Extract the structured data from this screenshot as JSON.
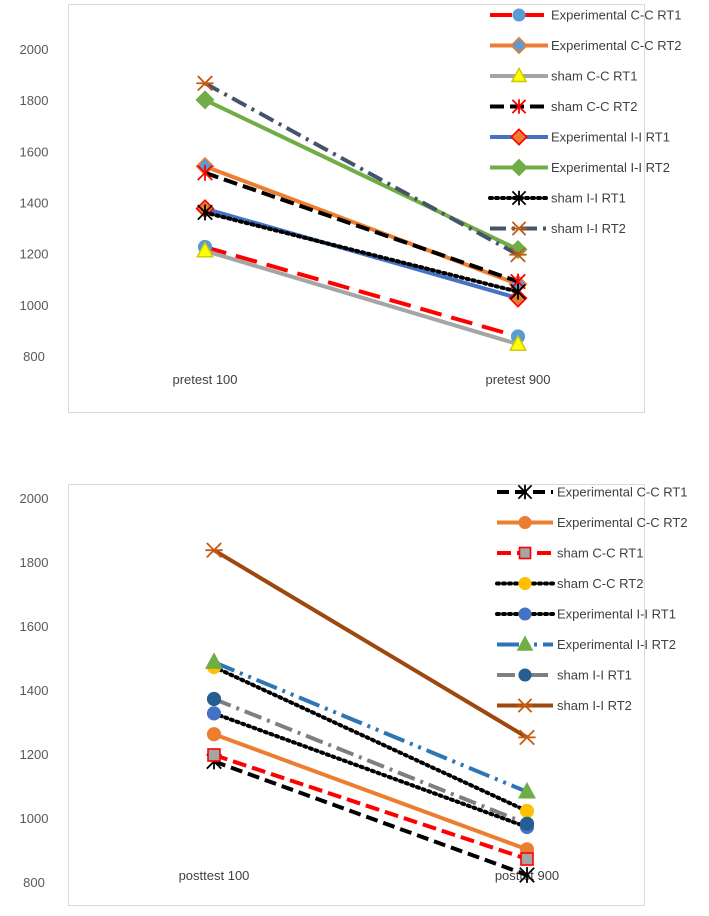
{
  "charts": [
    {
      "type": "line",
      "categories": [
        "pretest 100",
        "pretest 900"
      ],
      "ylim": [
        800,
        2000
      ],
      "yticks": [
        800,
        1000,
        1200,
        1400,
        1600,
        1800,
        2000
      ],
      "grid": false,
      "legend": "right",
      "series": [
        {
          "name": "Experimental C-C RT1",
          "values": [
            1230,
            880
          ],
          "color": "#ff0000",
          "dash": "22,10",
          "marker": "circle",
          "markerFill": "#5b9bd5",
          "markerStroke": "#5b9bd5"
        },
        {
          "name": "Experimental C-C RT2",
          "values": [
            1545,
            1085
          ],
          "color": "#ed7d31",
          "dash": "",
          "marker": "diamond",
          "markerFill": "#5b9bd5",
          "markerStroke": "#ed7d31"
        },
        {
          "name": "sham C-C RT1",
          "values": [
            1215,
            850
          ],
          "color": "#a5a5a5",
          "dash": "",
          "marker": "triangle",
          "markerFill": "#ffff00",
          "markerStroke": "#c9c900"
        },
        {
          "name": "sham C-C RT2",
          "values": [
            1520,
            1095
          ],
          "color": "#000000",
          "dash": "14,6",
          "marker": "star",
          "markerFill": "#ff0000",
          "markerStroke": "#ff0000"
        },
        {
          "name": "Experimental I-I RT1",
          "values": [
            1380,
            1030
          ],
          "color": "#4472c4",
          "dash": "",
          "marker": "diamond",
          "markerFill": "#ed7d31",
          "markerStroke": "#ff0000"
        },
        {
          "name": "Experimental  I-I RT2",
          "values": [
            1805,
            1220
          ],
          "color": "#70ad47",
          "dash": "",
          "marker": "diamond",
          "markerFill": "#70ad47",
          "markerStroke": "#70ad47"
        },
        {
          "name": "sham   I-I RT1",
          "values": [
            1365,
            1055
          ],
          "color": "#000000",
          "dash": "2,4",
          "marker": "star",
          "markerFill": "#000000",
          "markerStroke": "#000000"
        },
        {
          "name": "sham   I-I RT2",
          "values": [
            1870,
            1200
          ],
          "color": "#44546a",
          "dash": "16,6,3,6",
          "marker": "xstar",
          "markerFill": "#c55a11",
          "markerStroke": "#c55a11"
        }
      ]
    },
    {
      "type": "line",
      "categories": [
        "posttest 100",
        "posttet 900"
      ],
      "ylim": [
        800,
        2000
      ],
      "yticks": [
        800,
        1000,
        1200,
        1400,
        1600,
        1800,
        2000
      ],
      "grid": false,
      "legend": "right",
      "series": [
        {
          "name": "Experimental C-C RT1",
          "values": [
            1180,
            825
          ],
          "color": "#000000",
          "dash": "12,6",
          "marker": "star",
          "markerFill": "#000000",
          "markerStroke": "#000000"
        },
        {
          "name": "Experimental C-C RT2",
          "values": [
            1265,
            905
          ],
          "color": "#ed7d31",
          "dash": "",
          "marker": "circle",
          "markerFill": "#ed7d31",
          "markerStroke": "#ed7d31"
        },
        {
          "name": "sham C-C RT1",
          "values": [
            1200,
            875
          ],
          "color": "#ff0000",
          "dash": "14,6",
          "marker": "square",
          "markerFill": "#a5a5a5",
          "markerStroke": "#ff0000"
        },
        {
          "name": "sham C-C RT2",
          "values": [
            1475,
            1025
          ],
          "color": "#000000",
          "dash": "2,4",
          "marker": "circle",
          "markerFill": "#ffc000",
          "markerStroke": "#ffc000"
        },
        {
          "name": "Experimental I-I RT1",
          "values": [
            1330,
            975
          ],
          "color": "#000000",
          "dash": "2,4",
          "marker": "circle",
          "markerFill": "#4472c4",
          "markerStroke": "#4472c4"
        },
        {
          "name": "Experimental  I-I RT2",
          "values": [
            1490,
            1085
          ],
          "color": "#2e75b6",
          "dash": "22,6,3,6,3,6",
          "marker": "triangle",
          "markerFill": "#70ad47",
          "markerStroke": "#70ad47"
        },
        {
          "name": "sham   I-I RT1",
          "values": [
            1375,
            985
          ],
          "color": "#7f7f7f",
          "dash": "18,6,3,6",
          "marker": "circle",
          "markerFill": "#255e91",
          "markerStroke": "#255e91"
        },
        {
          "name": "sham   I-I RT2",
          "values": [
            1840,
            1255
          ],
          "color": "#9e480e",
          "dash": "",
          "marker": "xstar",
          "markerFill": "#c55a11",
          "markerStroke": "#c55a11"
        }
      ]
    }
  ]
}
